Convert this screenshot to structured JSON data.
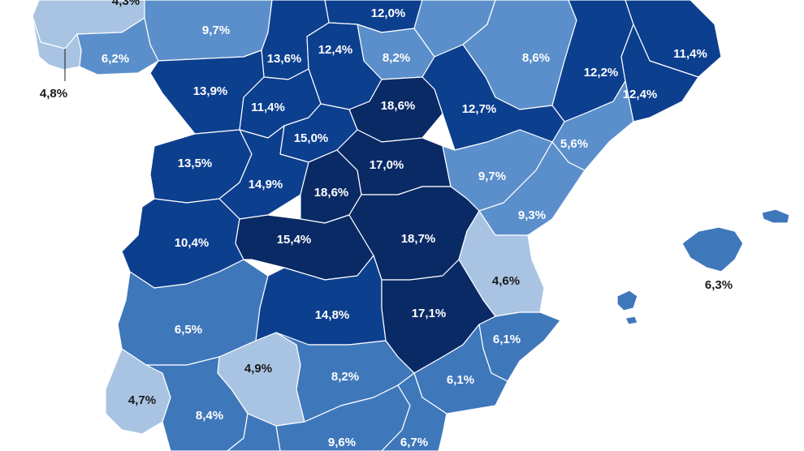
{
  "colors": {
    "c1": "#a8c4e2",
    "c2": "#5b8fcb",
    "c3": "#3f77bb",
    "c4": "#0d3f8f",
    "c5": "#0a2a66"
  },
  "regions": [
    {
      "id": "a-coruna",
      "value": "4,3%",
      "cls": "c1"
    },
    {
      "id": "pontevedra",
      "value": "4,8%",
      "cls": "c1"
    },
    {
      "id": "lugo-ourense",
      "value": "6,2%",
      "cls": "c2"
    },
    {
      "id": "asturias",
      "value": "9,7%",
      "cls": "c2"
    },
    {
      "id": "cantabria",
      "value": "12,0%",
      "cls": "c4"
    },
    {
      "id": "burgos",
      "value": "12,4%",
      "cls": "c4"
    },
    {
      "id": "palencia",
      "value": "13,6%",
      "cls": "c4"
    },
    {
      "id": "alava",
      "value": "8,2%",
      "cls": "c2"
    },
    {
      "id": "navarra",
      "value": "8,6%",
      "cls": "c2"
    },
    {
      "id": "lleida",
      "value": "12,2%",
      "cls": "c4"
    },
    {
      "id": "girona",
      "value": "11,4%",
      "cls": "c4"
    },
    {
      "id": "barcelona",
      "value": "12,4%",
      "cls": "c4"
    },
    {
      "id": "tarragona",
      "value": "5,6%",
      "cls": "c2"
    },
    {
      "id": "leon",
      "value": "13,9%",
      "cls": "c4"
    },
    {
      "id": "valladolid",
      "value": "11,4%",
      "cls": "c4"
    },
    {
      "id": "soria",
      "value": "18,6%",
      "cls": "c5"
    },
    {
      "id": "zaragoza",
      "value": "12,7%",
      "cls": "c4"
    },
    {
      "id": "segovia",
      "value": "15,0%",
      "cls": "c4"
    },
    {
      "id": "zamora-salamanca",
      "value": "13,5%",
      "cls": "c4"
    },
    {
      "id": "avila",
      "value": "14,9%",
      "cls": "c4"
    },
    {
      "id": "madrid",
      "value": "18,6%",
      "cls": "c5"
    },
    {
      "id": "guadalajara",
      "value": "17,0%",
      "cls": "c5"
    },
    {
      "id": "teruel",
      "value": "9,7%",
      "cls": "c2"
    },
    {
      "id": "castellon",
      "value": "9,3%",
      "cls": "c2"
    },
    {
      "id": "caceres",
      "value": "10,4%",
      "cls": "c4"
    },
    {
      "id": "toledo",
      "value": "15,4%",
      "cls": "c5"
    },
    {
      "id": "cuenca",
      "value": "18,7%",
      "cls": "c5"
    },
    {
      "id": "valencia",
      "value": "4,6%",
      "cls": "c1"
    },
    {
      "id": "baleares",
      "value": "6,3%",
      "cls": "c3"
    },
    {
      "id": "badajoz",
      "value": "6,5%",
      "cls": "c3"
    },
    {
      "id": "ciudad-real",
      "value": "14,8%",
      "cls": "c4"
    },
    {
      "id": "albacete",
      "value": "17,1%",
      "cls": "c5"
    },
    {
      "id": "alicante",
      "value": "6,1%",
      "cls": "c3"
    },
    {
      "id": "murcia",
      "value": "6,1%",
      "cls": "c3"
    },
    {
      "id": "cordoba",
      "value": "4,9%",
      "cls": "c1"
    },
    {
      "id": "jaen",
      "value": "8,2%",
      "cls": "c3"
    },
    {
      "id": "huelva",
      "value": "4,7%",
      "cls": "c1"
    },
    {
      "id": "sevilla",
      "value": "8,4%",
      "cls": "c3"
    },
    {
      "id": "granada",
      "value": "9,6%",
      "cls": "c3"
    },
    {
      "id": "almeria",
      "value": "6,7%",
      "cls": "c3"
    }
  ]
}
